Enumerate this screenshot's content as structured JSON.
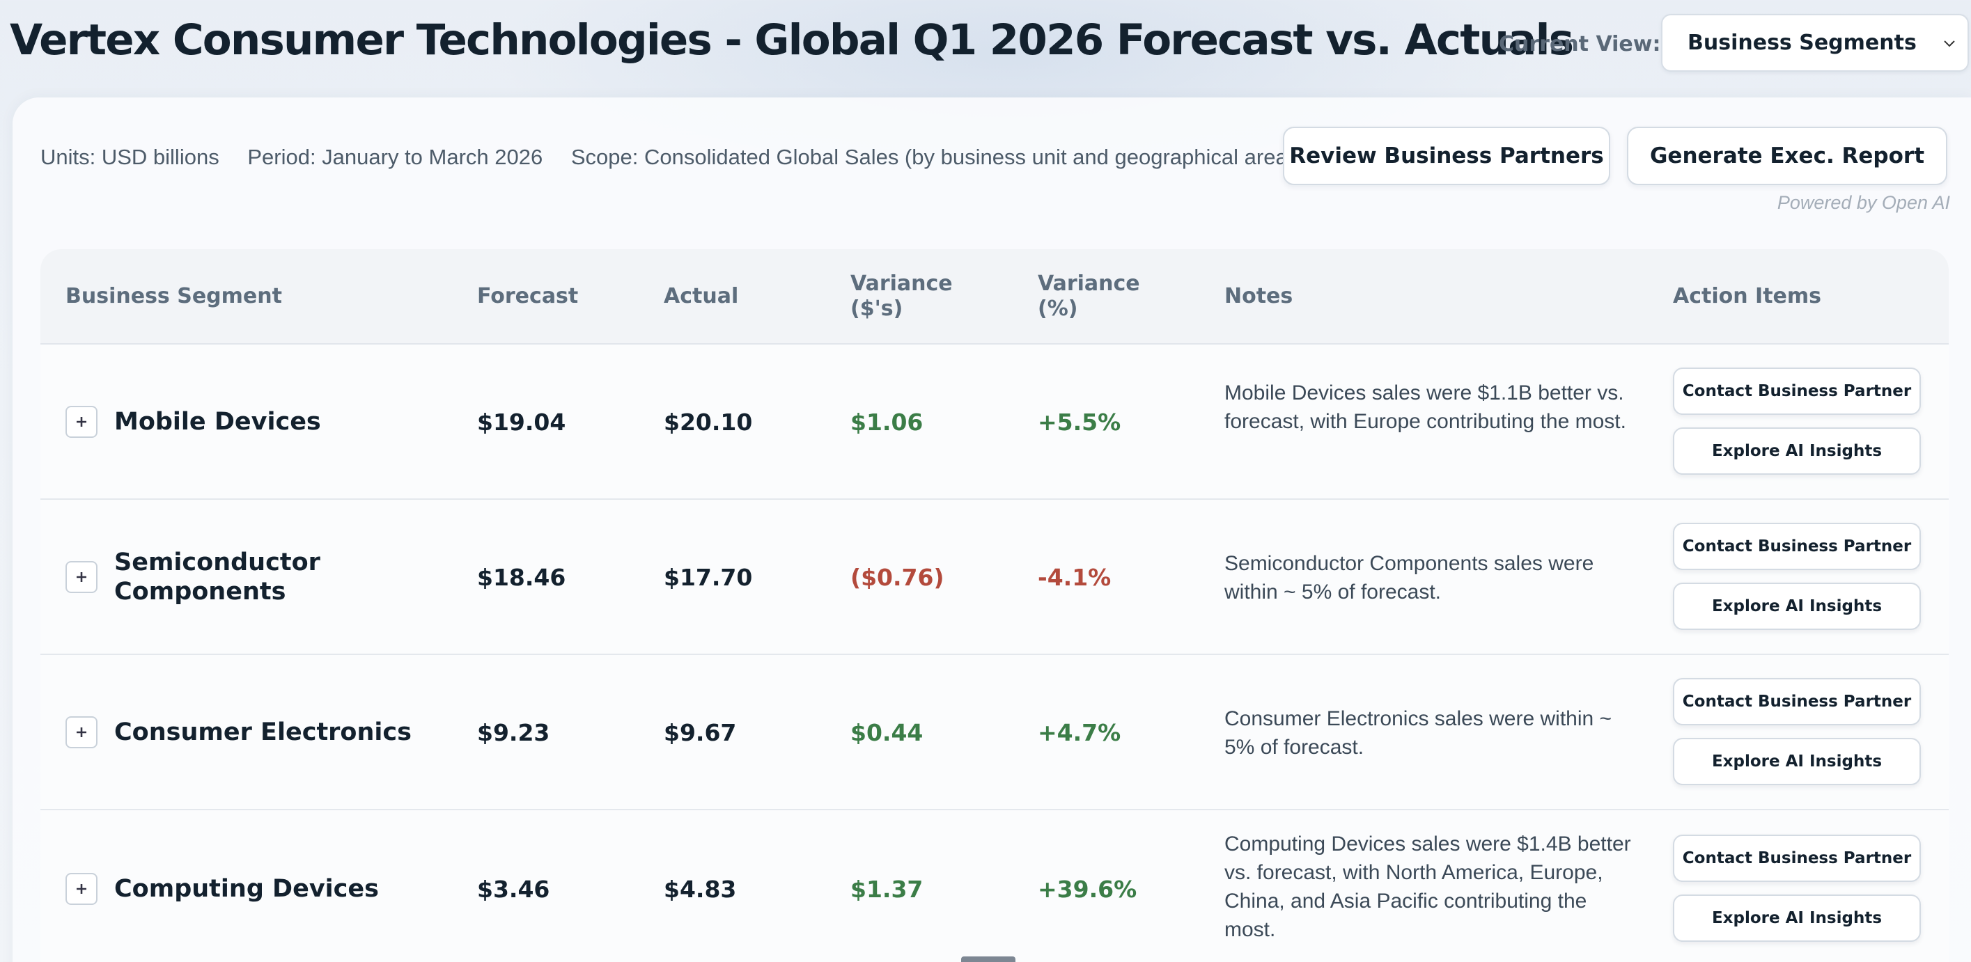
{
  "page": {
    "title": "Vertex Consumer Technologies - Global Q1 2026 Forecast vs. Actuals",
    "view_label": "Current View:",
    "view_selected": "Business Segments"
  },
  "meta": {
    "units": "Units: USD billions",
    "period": "Period: January to March 2026",
    "scope": "Scope: Consolidated Global Sales (by business unit and geographical area)"
  },
  "toolbar": {
    "review_label": "Review Business Partners",
    "report_label": "Generate Exec. Report",
    "powered_by": "Powered by Open AI"
  },
  "table": {
    "headers": {
      "segment": "Business Segment",
      "forecast": "Forecast",
      "actual": "Actual",
      "variance_usd_1": "Variance",
      "variance_usd_2": "($'s)",
      "variance_pct_1": "Variance",
      "variance_pct_2": "(%)",
      "notes": "Notes",
      "actions": "Action Items"
    },
    "action_labels": {
      "contact": "Contact Business Partner",
      "explore": "Explore AI Insights"
    },
    "rows": [
      {
        "segment_1": "Mobile Devices",
        "segment_2": "",
        "forecast": "$19.04",
        "actual": "$20.10",
        "variance_usd": "$1.06",
        "variance_pct": "+5.5%",
        "notes": "Mobile Devices sales were $1.1B better vs. forecast, with Europe contributing the most."
      },
      {
        "segment_1": "Semiconductor",
        "segment_2": "Components",
        "forecast": "$18.46",
        "actual": "$17.70",
        "variance_usd": "($0.76)",
        "variance_pct": "-4.1%",
        "notes": "Semiconductor Components sales were within ~ 5% of forecast."
      },
      {
        "segment_1": "Consumer Electronics",
        "segment_2": "",
        "forecast": "$9.23",
        "actual": "$9.67",
        "variance_usd": "$0.44",
        "variance_pct": "+4.7%",
        "notes": "Consumer Electronics sales were within ~ 5% of forecast."
      },
      {
        "segment_1": "Computing Devices",
        "segment_2": "",
        "forecast": "$3.46",
        "actual": "$4.83",
        "variance_usd": "$1.37",
        "variance_pct": "+39.6%",
        "notes": "Computing Devices sales were $1.4B better vs. forecast, with North America, Europe, China, and Asia Pacific contributing the most."
      }
    ]
  },
  "colors": {
    "positive": "#3b7d47",
    "negative": "#b34a3c",
    "title": "#13212e"
  },
  "icons": {
    "select": "chevron-down-icon",
    "expand": "plus-icon"
  }
}
